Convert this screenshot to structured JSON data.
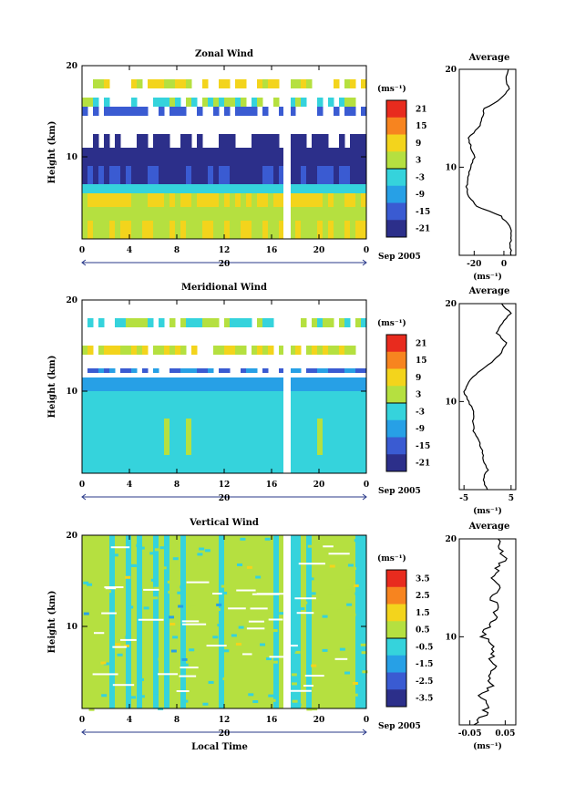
{
  "chart_data": [
    {
      "type": "heatmap",
      "title": "Zonal Wind",
      "ylabel": "Height (km)",
      "xlabel": "",
      "xticks": [
        "0",
        "4",
        "8",
        "12",
        "16",
        "20",
        "0"
      ],
      "yticks": [
        "10",
        "20"
      ],
      "xlim": [
        0,
        24
      ],
      "ylim": [
        1,
        20
      ],
      "date_label": "20",
      "month_label": "Sep 2005",
      "colorbar": {
        "unit": "(ms⁻¹)",
        "ticks": [
          "21",
          "15",
          "9",
          "3",
          "-3",
          "-9",
          "-15",
          "-21"
        ],
        "range": [
          -24,
          24
        ]
      },
      "layers": [
        {
          "bottom": 1,
          "top": 3,
          "value": 6
        },
        {
          "bottom": 3,
          "top": 4.5,
          "value": 3
        },
        {
          "bottom": 4.5,
          "top": 6,
          "value": 7
        },
        {
          "bottom": 6,
          "top": 7,
          "value": -3
        },
        {
          "bottom": 7,
          "top": 9,
          "value": -18
        },
        {
          "bottom": 9,
          "top": 11,
          "value": -22
        },
        {
          "bottom": 11,
          "top": 12.5,
          "value": -20
        },
        {
          "bottom": 14.5,
          "top": 15.5,
          "value": -16
        },
        {
          "bottom": 15.5,
          "top": 16.5,
          "value": 0
        },
        {
          "bottom": 17.5,
          "top": 18.5,
          "value": 6
        }
      ],
      "profile": {
        "title": "Average",
        "xticks": [
          "-20",
          "0"
        ],
        "xlim": [
          -30,
          8
        ],
        "unit": "(ms⁻¹)",
        "heights": [
          1,
          2,
          3,
          4,
          5,
          6,
          7,
          8,
          9,
          10,
          11,
          12,
          13,
          14,
          15,
          16,
          17,
          18,
          19,
          20
        ],
        "values": [
          5,
          4,
          5,
          4,
          -2,
          -18,
          -24,
          -25,
          -24,
          -22,
          -20,
          -22,
          -24,
          -17,
          -15,
          -13,
          -2,
          4,
          1,
          3
        ]
      }
    },
    {
      "type": "heatmap",
      "title": "Meridional Wind",
      "ylabel": "Height (km)",
      "xlabel": "",
      "xticks": [
        "0",
        "4",
        "8",
        "12",
        "16",
        "20",
        "0"
      ],
      "yticks": [
        "10",
        "20"
      ],
      "xlim": [
        0,
        24
      ],
      "ylim": [
        1,
        20
      ],
      "date_label": "20",
      "month_label": "Sep 2005",
      "colorbar": {
        "unit": "(ms⁻¹)",
        "ticks": [
          "21",
          "15",
          "9",
          "3",
          "-3",
          "-9",
          "-15",
          "-21"
        ],
        "range": [
          -24,
          24
        ]
      },
      "layers": [
        {
          "bottom": 1,
          "top": 3,
          "value": -3
        },
        {
          "bottom": 3,
          "top": 7,
          "value": -1
        },
        {
          "bottom": 7,
          "top": 10,
          "value": -3
        },
        {
          "bottom": 10,
          "top": 11.5,
          "value": -8
        },
        {
          "bottom": 12,
          "top": 12.5,
          "value": -12
        },
        {
          "bottom": 14,
          "top": 15,
          "value": 6
        },
        {
          "bottom": 17,
          "top": 18,
          "value": 0
        }
      ],
      "profile": {
        "title": "Average",
        "xticks": [
          "-5",
          "5"
        ],
        "xlim": [
          -6,
          6
        ],
        "unit": "(ms⁻¹)",
        "heights": [
          1,
          2,
          3,
          4,
          5,
          6,
          7,
          8,
          9,
          10,
          11,
          12,
          13,
          14,
          15,
          16,
          17,
          18,
          19,
          20
        ],
        "values": [
          0,
          -1,
          0,
          -1,
          -1,
          -2,
          -3,
          -3,
          -3,
          -4,
          -5,
          -4,
          -2,
          1,
          3,
          4,
          2,
          3,
          5,
          3
        ]
      }
    },
    {
      "type": "heatmap",
      "title": "Vertical Wind",
      "ylabel": "Height (km)",
      "xlabel": "Local Time",
      "xticks": [
        "0",
        "4",
        "8",
        "12",
        "16",
        "20",
        "0"
      ],
      "yticks": [
        "10",
        "20"
      ],
      "xlim": [
        0,
        24
      ],
      "ylim": [
        1,
        20
      ],
      "date_label": "20",
      "month_label": "Sep 2005",
      "colorbar": {
        "unit": "(ms⁻¹)",
        "ticks": [
          "3.5",
          "2.5",
          "1.5",
          "0.5",
          "-0.5",
          "-1.5",
          "-2.5",
          "-3.5"
        ],
        "range": [
          -4,
          4
        ]
      },
      "layers": [
        {
          "bottom": 1,
          "top": 20,
          "value": 0.1
        }
      ],
      "profile": {
        "title": "Average",
        "xticks": [
          "-0.05",
          "0.05"
        ],
        "xlim": [
          -0.08,
          0.08
        ],
        "unit": "(ms⁻¹)",
        "heights": [
          1,
          2,
          3,
          4,
          5,
          6,
          7,
          8,
          9,
          10,
          11,
          12,
          13,
          14,
          15,
          16,
          17,
          18,
          19,
          20
        ],
        "values": [
          -0.04,
          -0.01,
          0.0,
          -0.02,
          0.01,
          0.0,
          0.02,
          0.01,
          0.01,
          -0.01,
          0.0,
          0.02,
          0.03,
          0.01,
          0.04,
          0.02,
          0.03,
          0.05,
          0.04,
          0.03
        ]
      }
    }
  ]
}
